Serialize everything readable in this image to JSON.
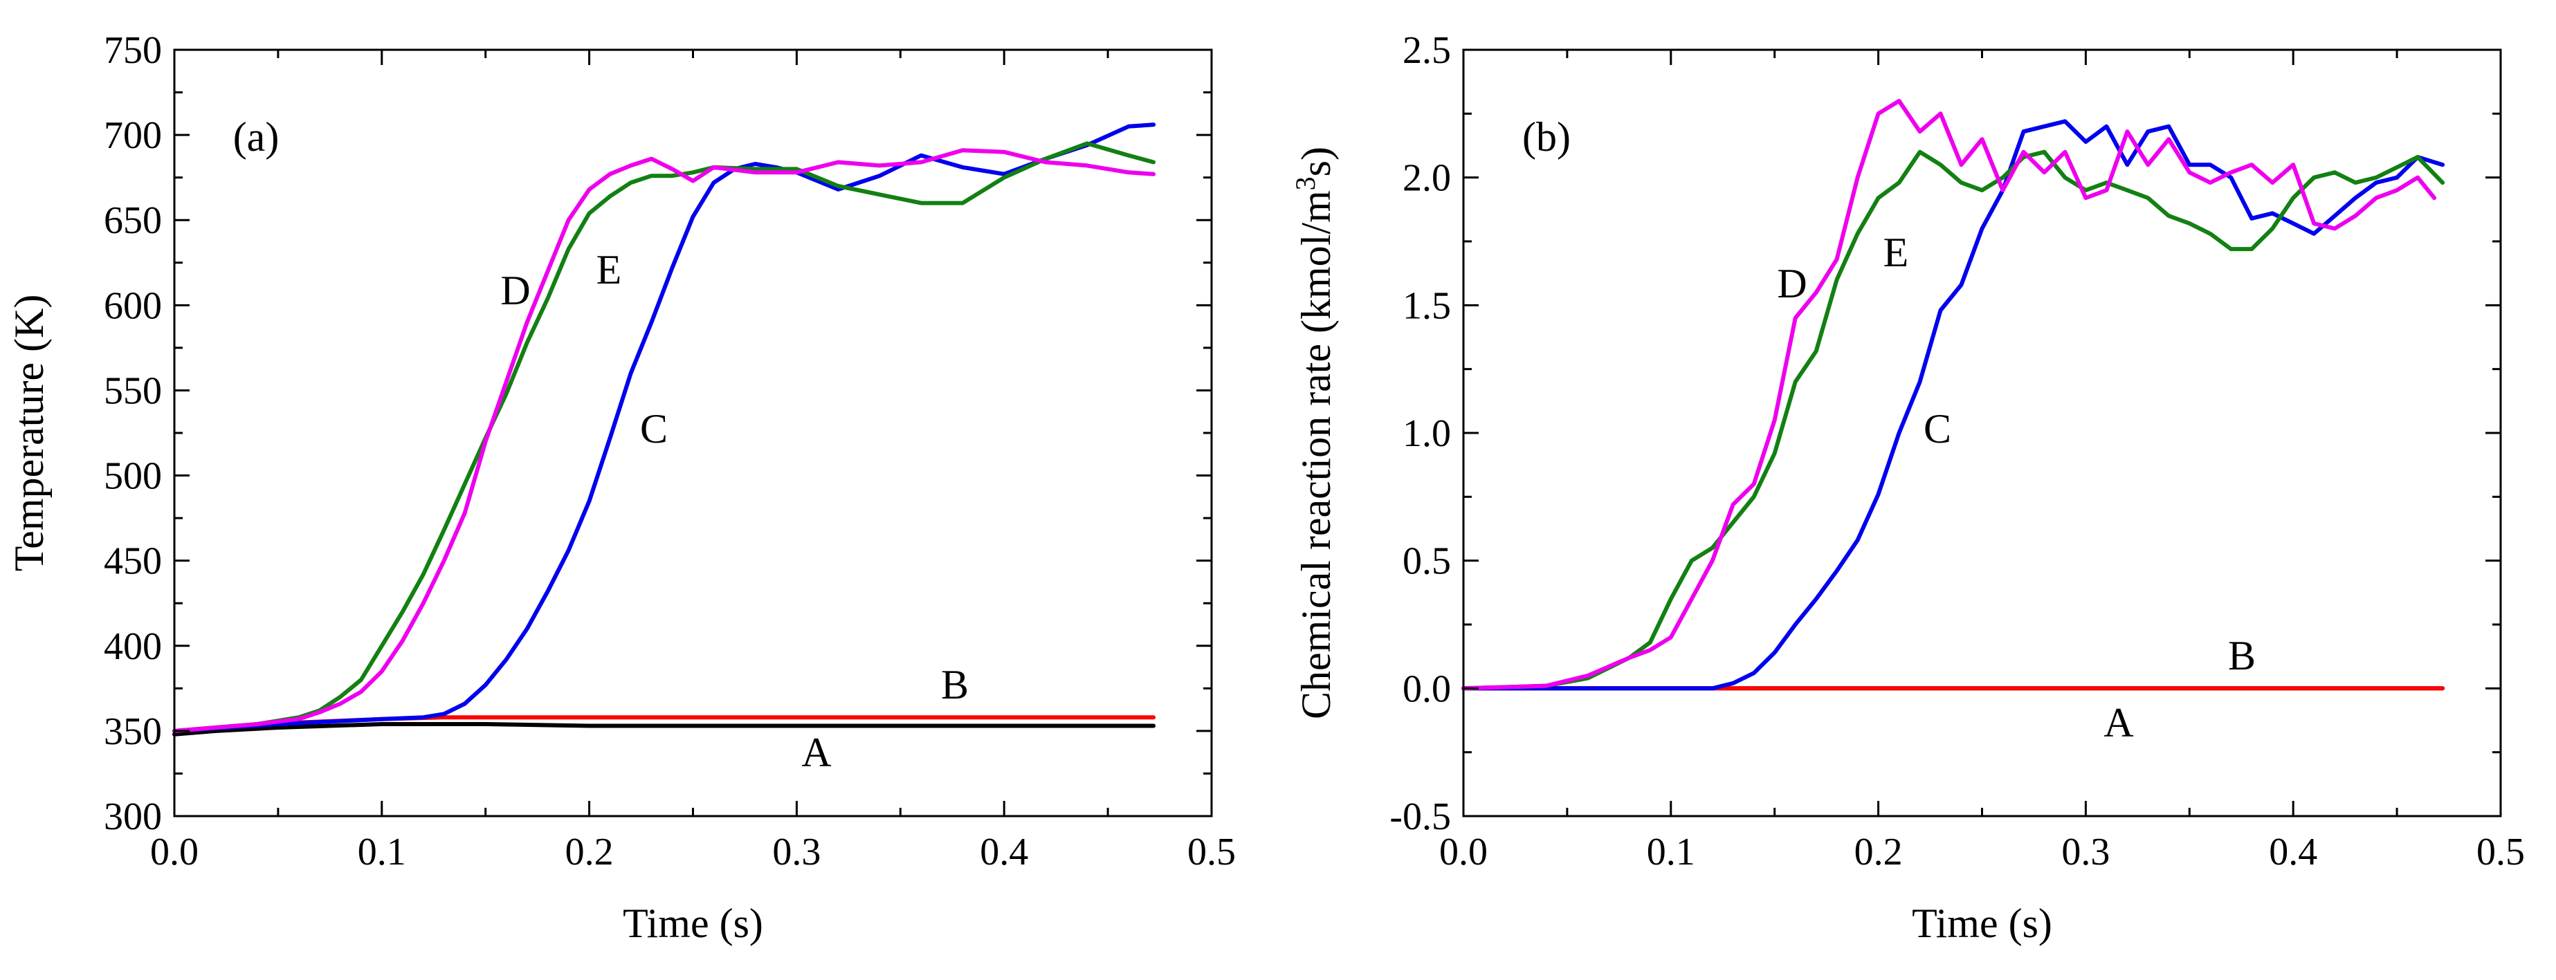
{
  "chart_data": [
    {
      "type": "line",
      "panel_label": "(a)",
      "xlabel": "Time (s)",
      "ylabel": "Temperature (K)",
      "xlim": [
        0.0,
        0.5
      ],
      "ylim": [
        300,
        750
      ],
      "x_ticks": [
        "0.0",
        "0.1",
        "0.2",
        "0.3",
        "0.4",
        "0.5"
      ],
      "y_ticks": [
        "300",
        "350",
        "400",
        "450",
        "500",
        "550",
        "600",
        "650",
        "700",
        "750"
      ],
      "series": [
        {
          "name": "A",
          "color": "#000000",
          "x": [
            0.0,
            0.02,
            0.05,
            0.1,
            0.15,
            0.2,
            0.3,
            0.4,
            0.472
          ],
          "y": [
            348,
            350,
            352,
            354,
            354,
            353,
            353,
            353,
            353
          ]
        },
        {
          "name": "B",
          "color": "#ff0000",
          "x": [
            0.0,
            0.03,
            0.06,
            0.1,
            0.13,
            0.2,
            0.3,
            0.4,
            0.472
          ],
          "y": [
            350,
            353,
            355,
            357,
            358,
            358,
            358,
            358,
            358
          ]
        },
        {
          "name": "C",
          "color": "#0000ee",
          "x": [
            0.0,
            0.05,
            0.1,
            0.12,
            0.13,
            0.14,
            0.15,
            0.16,
            0.17,
            0.18,
            0.19,
            0.2,
            0.21,
            0.22,
            0.23,
            0.24,
            0.25,
            0.26,
            0.27,
            0.28,
            0.29,
            0.3,
            0.32,
            0.34,
            0.36,
            0.38,
            0.4,
            0.42,
            0.44,
            0.46,
            0.472
          ],
          "y": [
            350,
            354,
            357,
            358,
            360,
            366,
            377,
            392,
            410,
            432,
            456,
            485,
            522,
            560,
            590,
            622,
            652,
            672,
            680,
            683,
            681,
            678,
            668,
            676,
            688,
            681,
            677,
            686,
            694,
            705,
            706
          ]
        },
        {
          "name": "D",
          "color": "#ee00ee",
          "x": [
            0.0,
            0.04,
            0.06,
            0.07,
            0.08,
            0.09,
            0.1,
            0.11,
            0.12,
            0.13,
            0.14,
            0.15,
            0.16,
            0.17,
            0.18,
            0.19,
            0.2,
            0.21,
            0.22,
            0.23,
            0.24,
            0.25,
            0.26,
            0.28,
            0.3,
            0.32,
            0.34,
            0.36,
            0.38,
            0.4,
            0.42,
            0.44,
            0.46,
            0.472
          ],
          "y": [
            350,
            354,
            357,
            361,
            366,
            373,
            385,
            403,
            425,
            450,
            478,
            520,
            555,
            590,
            620,
            650,
            668,
            677,
            682,
            686,
            680,
            673,
            681,
            678,
            678,
            684,
            682,
            684,
            691,
            690,
            684,
            682,
            678,
            677
          ]
        },
        {
          "name": "E",
          "color": "#128012",
          "x": [
            0.0,
            0.04,
            0.06,
            0.07,
            0.08,
            0.09,
            0.1,
            0.11,
            0.12,
            0.13,
            0.14,
            0.15,
            0.16,
            0.17,
            0.18,
            0.19,
            0.2,
            0.21,
            0.22,
            0.23,
            0.24,
            0.25,
            0.26,
            0.28,
            0.3,
            0.32,
            0.34,
            0.36,
            0.38,
            0.4,
            0.42,
            0.44,
            0.46,
            0.472
          ],
          "y": [
            350,
            354,
            358,
            362,
            370,
            380,
            400,
            420,
            442,
            468,
            495,
            522,
            548,
            578,
            604,
            633,
            654,
            664,
            672,
            676,
            676,
            678,
            681,
            680,
            680,
            670,
            665,
            660,
            660,
            675,
            686,
            695,
            688,
            684
          ]
        }
      ],
      "annotations": [
        "(a)",
        "A",
        "B",
        "C",
        "D",
        "E"
      ]
    },
    {
      "type": "line",
      "panel_label": "(b)",
      "xlabel": "Time (s)",
      "ylabel": "Chemical reaction rate (kmol/m3s)",
      "ylabel_parts": [
        "Chemical reaction rate (kmol/m",
        "3",
        "s)"
      ],
      "xlim": [
        0.0,
        0.5
      ],
      "ylim": [
        -0.5,
        2.5
      ],
      "x_ticks": [
        "0.0",
        "0.1",
        "0.2",
        "0.3",
        "0.4",
        "0.5"
      ],
      "y_ticks": [
        "-0.5",
        "0.0",
        "0.5",
        "1.0",
        "1.5",
        "2.0",
        "2.5"
      ],
      "series": [
        {
          "name": "A",
          "color": "#000000",
          "x": [
            0.0,
            0.472
          ],
          "y": [
            0.0,
            0.0
          ]
        },
        {
          "name": "B",
          "color": "#ff0000",
          "x": [
            0.0,
            0.472
          ],
          "y": [
            0.0,
            0.0
          ]
        },
        {
          "name": "C",
          "color": "#0000ee",
          "x": [
            0.0,
            0.12,
            0.13,
            0.14,
            0.15,
            0.16,
            0.17,
            0.18,
            0.19,
            0.2,
            0.21,
            0.22,
            0.23,
            0.24,
            0.25,
            0.26,
            0.27,
            0.28,
            0.29,
            0.3,
            0.31,
            0.32,
            0.33,
            0.34,
            0.35,
            0.36,
            0.37,
            0.38,
            0.39,
            0.4,
            0.41,
            0.42,
            0.43,
            0.44,
            0.45,
            0.46,
            0.472
          ],
          "y": [
            0.0,
            0.0,
            0.02,
            0.06,
            0.14,
            0.25,
            0.35,
            0.46,
            0.58,
            0.76,
            1.0,
            1.2,
            1.48,
            1.58,
            1.8,
            1.95,
            2.18,
            2.2,
            2.22,
            2.14,
            2.2,
            2.05,
            2.18,
            2.2,
            2.05,
            2.05,
            2.0,
            1.84,
            1.86,
            1.82,
            1.78,
            1.85,
            1.92,
            1.98,
            2.0,
            2.08,
            2.05
          ]
        },
        {
          "name": "D",
          "color": "#ee00ee",
          "x": [
            0.0,
            0.04,
            0.06,
            0.08,
            0.09,
            0.1,
            0.11,
            0.12,
            0.13,
            0.14,
            0.15,
            0.16,
            0.17,
            0.18,
            0.19,
            0.2,
            0.21,
            0.22,
            0.23,
            0.24,
            0.25,
            0.26,
            0.27,
            0.28,
            0.29,
            0.3,
            0.31,
            0.32,
            0.33,
            0.34,
            0.35,
            0.36,
            0.37,
            0.38,
            0.39,
            0.4,
            0.41,
            0.42,
            0.43,
            0.44,
            0.45,
            0.46,
            0.468
          ],
          "y": [
            0.0,
            0.01,
            0.05,
            0.12,
            0.15,
            0.2,
            0.35,
            0.5,
            0.72,
            0.8,
            1.05,
            1.45,
            1.55,
            1.68,
            2.0,
            2.25,
            2.3,
            2.18,
            2.25,
            2.05,
            2.15,
            1.95,
            2.1,
            2.02,
            2.1,
            1.92,
            1.95,
            2.18,
            2.05,
            2.15,
            2.02,
            1.98,
            2.02,
            2.05,
            1.98,
            2.05,
            1.82,
            1.8,
            1.85,
            1.92,
            1.95,
            2.0,
            1.92
          ]
        },
        {
          "name": "E",
          "color": "#128012",
          "x": [
            0.0,
            0.04,
            0.06,
            0.08,
            0.09,
            0.1,
            0.11,
            0.12,
            0.13,
            0.14,
            0.15,
            0.16,
            0.17,
            0.18,
            0.19,
            0.2,
            0.21,
            0.22,
            0.23,
            0.24,
            0.25,
            0.26,
            0.27,
            0.28,
            0.29,
            0.3,
            0.31,
            0.32,
            0.33,
            0.34,
            0.35,
            0.36,
            0.37,
            0.38,
            0.39,
            0.4,
            0.41,
            0.42,
            0.43,
            0.44,
            0.45,
            0.46,
            0.472
          ],
          "y": [
            0.0,
            0.01,
            0.04,
            0.12,
            0.18,
            0.35,
            0.5,
            0.55,
            0.65,
            0.75,
            0.92,
            1.2,
            1.32,
            1.6,
            1.78,
            1.92,
            1.98,
            2.1,
            2.05,
            1.98,
            1.95,
            2.0,
            2.08,
            2.1,
            2.0,
            1.95,
            1.98,
            1.95,
            1.92,
            1.85,
            1.82,
            1.78,
            1.72,
            1.72,
            1.8,
            1.92,
            2.0,
            2.02,
            1.98,
            2.0,
            2.04,
            2.08,
            1.98
          ]
        }
      ],
      "annotations": [
        "(b)",
        "A",
        "B",
        "C",
        "D",
        "E"
      ]
    }
  ]
}
